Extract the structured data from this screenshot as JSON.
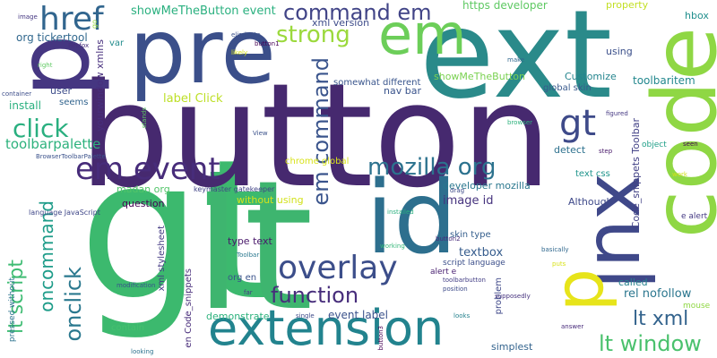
{
  "words": [
    {
      "text": "gt",
      "color": "#3cb96e"
    },
    {
      "text": "lt",
      "color": "#3eb56f"
    },
    {
      "text": "button",
      "color": "#46296f"
    },
    {
      "text": "id",
      "color": "#2d6f8e"
    },
    {
      "text": "ext",
      "color": "#2a8a8a"
    },
    {
      "text": "code",
      "color": "#8fd744"
    },
    {
      "text": "xul",
      "color": "#3f4889"
    },
    {
      "text": "pre",
      "color": "#3b4f8a"
    },
    {
      "text": "p",
      "color": "#453681"
    },
    {
      "text": "p",
      "color": "#e7e41a"
    },
    {
      "text": "em",
      "color": "#6cce59"
    },
    {
      "text": "extension",
      "color": "#22838e"
    },
    {
      "text": "href",
      "color": "#31658e"
    },
    {
      "text": "overlay",
      "color": "#3c4e8a"
    },
    {
      "text": "em event",
      "color": "#472c7a"
    },
    {
      "text": "gt",
      "color": "#3e4a89"
    },
    {
      "text": "command em",
      "color": "#414487"
    },
    {
      "text": "strong",
      "color": "#9bd93c"
    },
    {
      "text": "click",
      "color": "#29af7f"
    },
    {
      "text": "mozilla org",
      "color": "#2c728e"
    },
    {
      "text": "em command",
      "color": "#3a548c"
    },
    {
      "text": "function",
      "color": "#472d7b"
    },
    {
      "text": "lt window",
      "color": "#4ac16d"
    },
    {
      "text": "lt xml",
      "color": "#33638d"
    },
    {
      "text": "oncommand",
      "color": "#1e9c89"
    },
    {
      "text": "onclick",
      "color": "#2a788e"
    },
    {
      "text": "lt script",
      "color": "#3fbc73"
    },
    {
      "text": "Code_snippets Toolbar",
      "color": "#424186"
    },
    {
      "text": "showMeTheButton event",
      "color": "#2ab07f"
    },
    {
      "text": "org tickertool",
      "color": "#31688e"
    },
    {
      "text": "toolbarpalette",
      "color": "#2db27d"
    },
    {
      "text": "label Click",
      "color": "#bddf26"
    },
    {
      "text": "https developer",
      "color": "#5ec962"
    },
    {
      "text": "yourwindow xmlns",
      "color": "#472f7d"
    },
    {
      "text": "event label",
      "color": "#3b528b"
    },
    {
      "text": "image id",
      "color": "#46337e"
    },
    {
      "text": "textbox",
      "color": "#365c8d"
    },
    {
      "text": "rel nofollow",
      "color": "#2a768e"
    },
    {
      "text": "xml version",
      "color": "#3e4c8a"
    },
    {
      "text": "hbox",
      "color": "#218f8d"
    },
    {
      "text": "toolbaritem",
      "color": "#23888e"
    },
    {
      "text": "property",
      "color": "#c2df23"
    },
    {
      "text": "showMeTheButton",
      "color": "#7ad151"
    },
    {
      "text": "nav bar",
      "color": "#3a548c"
    },
    {
      "text": "somewhat different",
      "color": "#39558c"
    },
    {
      "text": "Customize",
      "color": "#25858e"
    },
    {
      "text": "global skin",
      "color": "#38598c"
    },
    {
      "text": "install",
      "color": "#2ab07f"
    },
    {
      "text": "question",
      "color": "#440154"
    },
    {
      "text": "madan org",
      "color": "#52c569"
    },
    {
      "text": "chrome global",
      "color": "#d8e219"
    },
    {
      "text": "developer mozilla",
      "color": "#2a778e"
    },
    {
      "text": "Although",
      "color": "#3e4989"
    },
    {
      "text": "text css",
      "color": "#1f948c"
    },
    {
      "text": "detect",
      "color": "#2d718e"
    },
    {
      "text": "using",
      "color": "#3c508b"
    },
    {
      "text": "called",
      "color": "#26828e"
    },
    {
      "text": "simplest",
      "color": "#33638d"
    },
    {
      "text": "mouse",
      "color": "#8fd744"
    },
    {
      "text": "var",
      "color": "#228c8d"
    },
    {
      "text": "user",
      "color": "#3d4d8a"
    },
    {
      "text": "seems",
      "color": "#32648e"
    },
    {
      "text": "without using",
      "color": "#d2e21b"
    },
    {
      "text": "type text",
      "color": "#48186a"
    },
    {
      "text": "skin type",
      "color": "#355f8d"
    },
    {
      "text": "org en",
      "color": "#3a538b"
    },
    {
      "text": "demonstrate",
      "color": "#2db27d"
    },
    {
      "text": "contain",
      "color": "#46c06f"
    },
    {
      "text": "problem",
      "color": "#3f4889"
    },
    {
      "text": "script language",
      "color": "#3c4f8a"
    },
    {
      "text": "en Code_snippets",
      "color": "#472c7a"
    },
    {
      "text": "xml stylesheet",
      "color": "#443a83"
    },
    {
      "text": "pressed without",
      "color": "#2c738e"
    },
    {
      "text": "e alert",
      "color": "#443983"
    },
    {
      "text": "object",
      "color": "#1f9f88"
    },
    {
      "text": "keymaster gatekeeper",
      "color": "#414487"
    },
    {
      "text": "language JavaScript",
      "color": "#3f4788"
    },
    {
      "text": "BrowserToolbarPalette",
      "color": "#3b528b"
    },
    {
      "text": "alert e",
      "color": "#481f70"
    },
    {
      "text": "button2",
      "color": "#472a7a"
    },
    {
      "text": "Firefox",
      "color": "#472e7c"
    },
    {
      "text": "container",
      "color": "#3d4e8a"
    },
    {
      "text": "image",
      "color": "#453882"
    },
    {
      "text": "eliminate",
      "color": "#3b518b"
    },
    {
      "text": "button1",
      "color": "#440154"
    },
    {
      "text": "likely",
      "color": "#d8e219"
    },
    {
      "text": "make",
      "color": "#31688e"
    },
    {
      "text": "right",
      "color": "#5ec962"
    },
    {
      "text": "go",
      "color": "#95d840"
    },
    {
      "text": "browser",
      "color": "#2db27d"
    },
    {
      "text": "figured",
      "color": "#453882"
    },
    {
      "text": "seen",
      "color": "#440154"
    },
    {
      "text": "stands",
      "color": "#5ec962"
    },
    {
      "text": "View",
      "color": "#3b528b"
    },
    {
      "text": "drag",
      "color": "#3e4a89"
    },
    {
      "text": "installed",
      "color": "#2ab07f"
    },
    {
      "text": "work",
      "color": "#d2e21b"
    },
    {
      "text": "step",
      "color": "#48186a"
    },
    {
      "text": "working",
      "color": "#35b779"
    },
    {
      "text": "basically",
      "color": "#31688e"
    },
    {
      "text": "Toolbar",
      "color": "#2a788e"
    },
    {
      "text": "modification",
      "color": "#39558c"
    },
    {
      "text": "far",
      "color": "#443983"
    },
    {
      "text": "toolbarbutton",
      "color": "#433e85"
    },
    {
      "text": "position",
      "color": "#3e4c8a"
    },
    {
      "text": "supposedly",
      "color": "#46327e"
    },
    {
      "text": "answer",
      "color": "#472a7a"
    },
    {
      "text": "single",
      "color": "#3e4a89"
    },
    {
      "text": "looks",
      "color": "#26828e"
    },
    {
      "text": "looking",
      "color": "#2c728e"
    },
    {
      "text": "button3",
      "color": "#440154"
    },
    {
      "text": "puts",
      "color": "#d8e219"
    }
  ]
}
